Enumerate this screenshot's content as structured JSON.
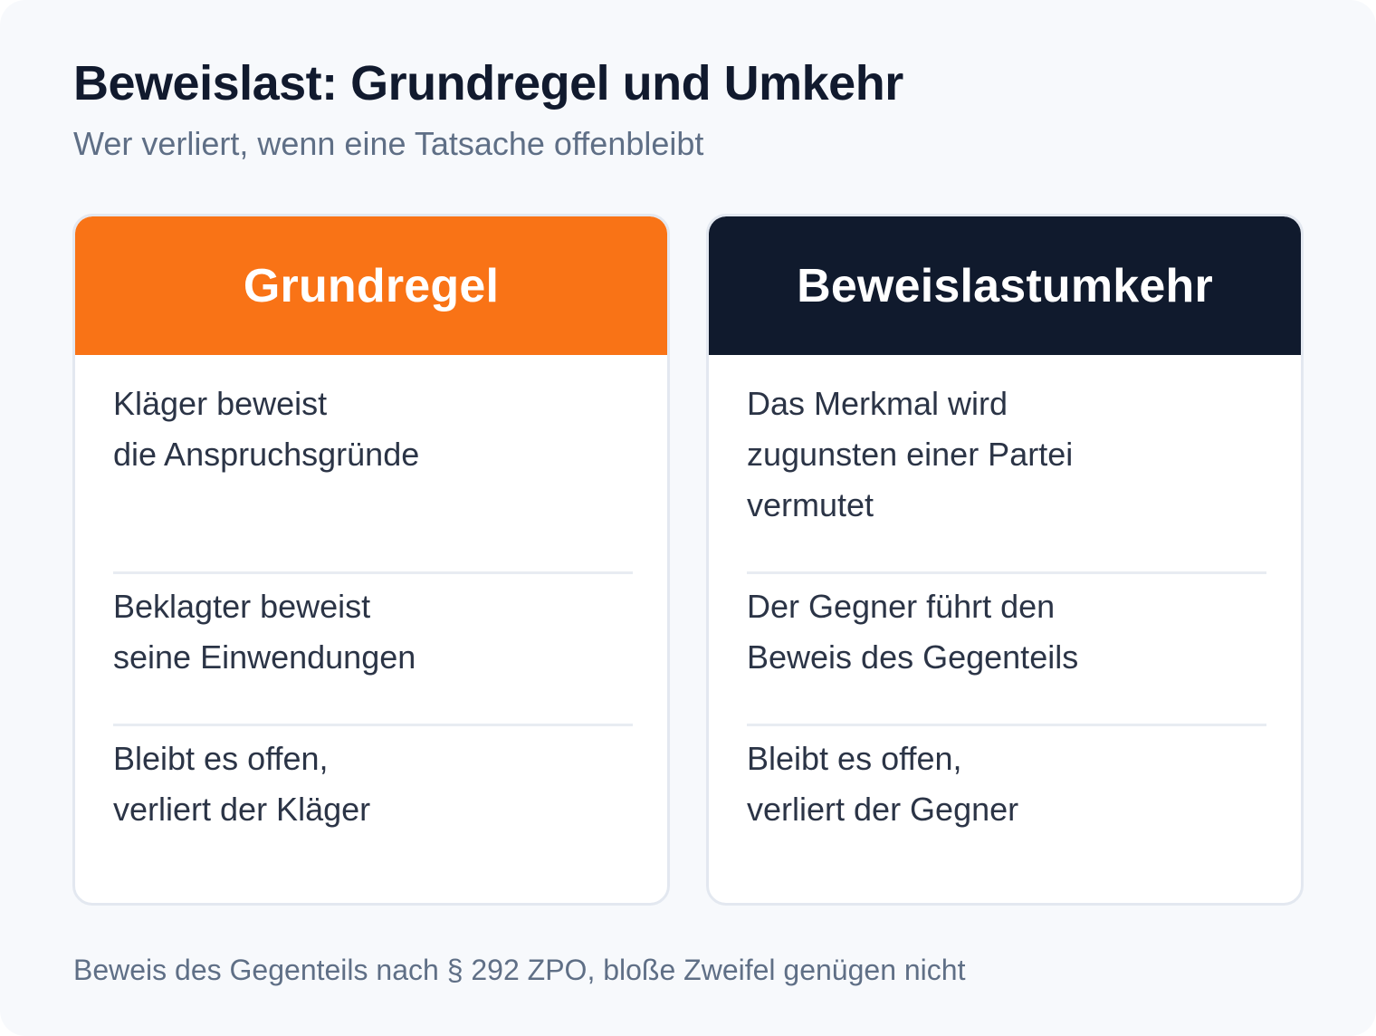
{
  "title": "Beweislast: Grundregel und Umkehr",
  "subtitle": "Wer verliert, wenn eine Tatsache offenbleibt",
  "colors": {
    "grundregel_header": "#f97316",
    "umkehr_header": "#101a2d",
    "background": "#f7f9fc"
  },
  "columns": [
    {
      "header": "Grundregel",
      "rows": [
        "Kläger beweist\ndie Anspruchsgründe",
        "Beklagter beweist\nseine Einwendungen",
        "Bleibt es offen,\nverliert der Kläger"
      ]
    },
    {
      "header": "Beweislastumkehr",
      "rows": [
        "Das Merkmal wird\nzugunsten einer Partei\nvermutet",
        "Der Gegner führt den\nBeweis des Gegenteils",
        "Bleibt es offen,\nverliert der Gegner"
      ]
    }
  ],
  "footnote": "Beweis des Gegenteils nach § 292 ZPO, bloße Zweifel genügen nicht"
}
